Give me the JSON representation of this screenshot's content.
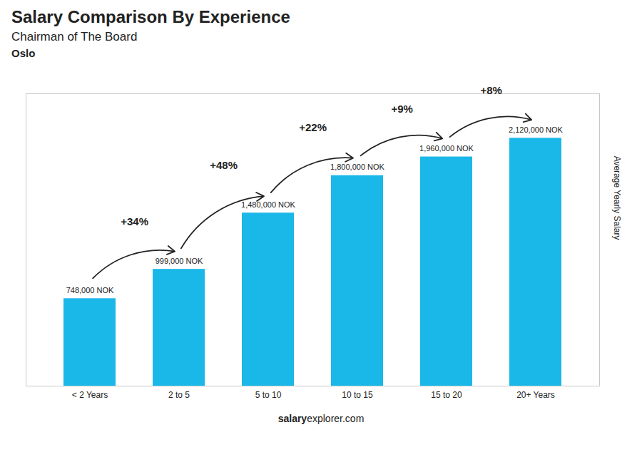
{
  "chart_data": {
    "type": "bar",
    "title": "Salary Comparison By Experience",
    "subtitle": "Chairman of The Board",
    "city": "Oslo",
    "ylabel": "Average Yearly Salary",
    "categories": [
      "< 2 Years",
      "2 to 5",
      "5 to 10",
      "10 to 15",
      "15 to 20",
      "20+ Years"
    ],
    "values": [
      748000,
      999000,
      1480000,
      1800000,
      1960000,
      2120000
    ],
    "value_labels": [
      "748,000 NOK",
      "999,000 NOK",
      "1,480,000 NOK",
      "1,800,000 NOK",
      "1,960,000 NOK",
      "2,120,000 NOK"
    ],
    "data_labels": true,
    "color": "#1ab8e8",
    "ylim": [
      0,
      2500000
    ],
    "tick_labels": "x",
    "grid": false,
    "annotations": [
      {
        "text": "+34%",
        "from": "< 2 Years",
        "to": "2 to 5"
      },
      {
        "text": "+48%",
        "from": "2 to 5",
        "to": "5 to 10"
      },
      {
        "text": "+22%",
        "from": "5 to 10",
        "to": "10 to 15"
      },
      {
        "text": "+9%",
        "from": "10 to 15",
        "to": "15 to 20"
      },
      {
        "text": "+8%",
        "from": "15 to 20",
        "to": "20+ Years"
      }
    ],
    "caption": [
      "salary",
      "explorer.com"
    ]
  }
}
